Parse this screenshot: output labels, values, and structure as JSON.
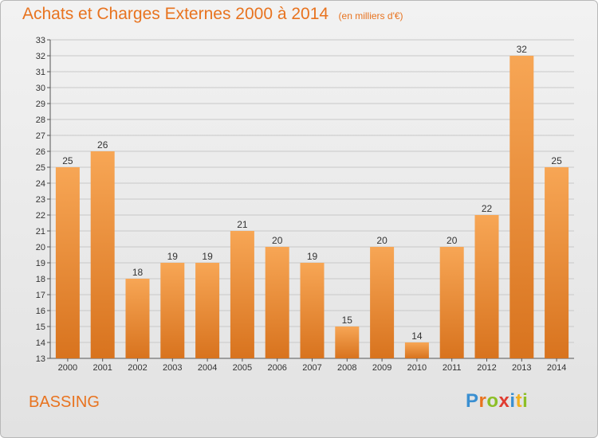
{
  "header": {
    "title": "Achats et Charges Externes 2000 à 2014",
    "subtitle": "(en milliers d'€)"
  },
  "footer": {
    "commune": "BASSING",
    "logo": {
      "text": "Proxiti",
      "letters": [
        {
          "char": "P",
          "color": "#3a8fd1"
        },
        {
          "char": "r",
          "color": "#e8731f"
        },
        {
          "char": "o",
          "color": "#8cbf26"
        },
        {
          "char": "x",
          "color": "#e03c31"
        },
        {
          "char": "i",
          "color": "#3a8fd1"
        },
        {
          "char": "t",
          "color": "#f2b01e"
        },
        {
          "char": "i",
          "color": "#8cbf26"
        }
      ]
    }
  },
  "colors": {
    "bar_light": "#f7a655",
    "bar_dark": "#d8731e",
    "title": "#e8731f",
    "grid": "#c8c8c8"
  },
  "chart_data": {
    "type": "bar",
    "title": "Achats et Charges Externes 2000 à 2014",
    "subtitle": "(en milliers d'€)",
    "xlabel": "",
    "ylabel": "",
    "categories": [
      "2000",
      "2001",
      "2002",
      "2003",
      "2004",
      "2005",
      "2006",
      "2007",
      "2008",
      "2009",
      "2010",
      "2011",
      "2012",
      "2013",
      "2014"
    ],
    "values": [
      25,
      26,
      18,
      19,
      19,
      21,
      20,
      19,
      15,
      20,
      14,
      20,
      22,
      32,
      25
    ],
    "ylim": [
      13,
      33
    ],
    "yticks": [
      13,
      14,
      15,
      16,
      17,
      18,
      19,
      20,
      21,
      22,
      23,
      24,
      25,
      26,
      27,
      28,
      29,
      30,
      31,
      32,
      33
    ],
    "grid": true,
    "legend": "none"
  }
}
